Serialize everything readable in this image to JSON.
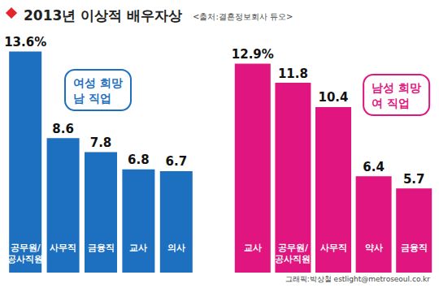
{
  "title": "2013년 이상적 배우자상",
  "source": "<출처:결혼정보회사 듀오>",
  "credit": "그래픽:박상철 estlight@metroseoul.co.kr",
  "chart_data": [
    {
      "type": "bar",
      "title": "여성 희망\n남 직업",
      "categories": [
        "공무원/\n공사직원",
        "사무직",
        "금융직",
        "교사",
        "의사"
      ],
      "values": [
        13.6,
        8.6,
        7.8,
        6.8,
        6.7
      ],
      "value_labels": [
        "13.6%",
        "8.6",
        "7.8",
        "6.8",
        "6.7"
      ],
      "color": "#1d6fbf",
      "ylim": [
        3,
        14
      ],
      "data_labels": true,
      "tick_labels": "x",
      "grid": false
    },
    {
      "type": "bar",
      "title": "남성 희망\n여 직업",
      "categories": [
        "교사",
        "공무원/\n공사직원",
        "사무직",
        "약사",
        "금융직"
      ],
      "values": [
        12.9,
        11.8,
        10.4,
        6.4,
        5.7
      ],
      "value_labels": [
        "12.9%",
        "11.8",
        "10.4",
        "6.4",
        "5.7"
      ],
      "color": "#e0157f",
      "ylim": [
        3,
        14
      ],
      "data_labels": true,
      "tick_labels": "x",
      "grid": false
    }
  ]
}
